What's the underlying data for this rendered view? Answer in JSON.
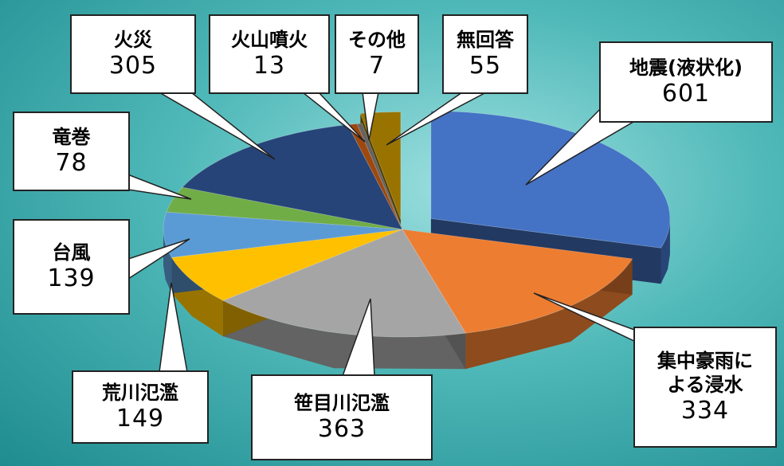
{
  "chart_data": {
    "type": "pie3d",
    "categories": [
      "地震(液状化)",
      "集中豪雨による浸水",
      "笹目川氾濫",
      "荒川氾濫",
      "台風",
      "竜巻",
      "火災",
      "火山噴火",
      "その他",
      "無回答"
    ],
    "values": [
      601,
      334,
      363,
      149,
      139,
      78,
      305,
      13,
      7,
      55
    ],
    "colors": [
      "#4472c4",
      "#ed7d31",
      "#a5a5a5",
      "#ffc000",
      "#5b9bd5",
      "#70ad47",
      "#264478",
      "#9e480e",
      "#636363",
      "#997300"
    ]
  }
}
